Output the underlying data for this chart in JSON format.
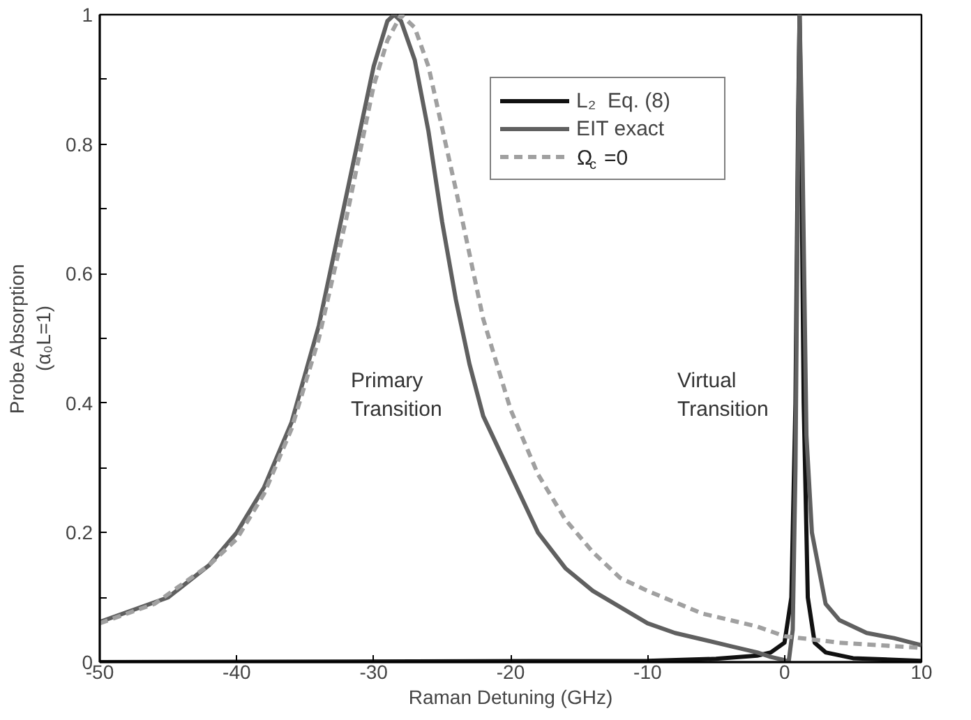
{
  "chart_data": {
    "type": "line",
    "xlabel": "Raman Detuning (GHz)",
    "ylabel": "Probe Absorption\n(α₀L=1)",
    "xlim": [
      -50,
      10
    ],
    "ylim": [
      0,
      1
    ],
    "xticks": [
      -50,
      -40,
      -30,
      -20,
      -10,
      0,
      10
    ],
    "yticks": [
      0,
      {
        "value": 0.1,
        "label": null
      },
      0.2,
      {
        "value": 0.3,
        "label": null
      },
      0.4,
      {
        "value": 0.5,
        "label": null
      },
      0.6,
      {
        "value": 0.7,
        "label": null
      },
      0.8,
      {
        "value": 0.9,
        "label": null
      },
      1
    ],
    "grid": false,
    "legend": "top right",
    "series": [
      {
        "name": "L₂  Eq. (8)",
        "color": "#111111",
        "line_style": "solid",
        "x": [
          -50,
          -10,
          -5,
          -2,
          -1,
          0,
          0.5,
          0.8,
          1.0,
          1.1,
          1.2,
          1.4,
          1.7,
          2.2,
          3,
          5,
          10
        ],
        "values": [
          0,
          0.002,
          0.005,
          0.01,
          0.015,
          0.03,
          0.1,
          0.4,
          0.85,
          1.0,
          0.85,
          0.4,
          0.1,
          0.03,
          0.015,
          0.006,
          0.002
        ]
      },
      {
        "name": "EIT exact",
        "color": "#606060",
        "line_style": "solid",
        "x": [
          -50,
          -45,
          -42,
          -40,
          -38,
          -36,
          -34,
          -32,
          -30,
          -29,
          -28.5,
          -28,
          -27,
          -26,
          -25,
          -24,
          -23,
          -22,
          -20,
          -18,
          -16,
          -14,
          -12,
          -10,
          -8,
          -6,
          -4,
          -2,
          -1,
          0,
          0.3,
          0.6,
          0.8,
          1.0,
          1.1,
          1.3,
          1.6,
          2,
          3,
          4,
          6,
          8,
          10
        ],
        "values": [
          0.062,
          0.1,
          0.15,
          0.2,
          0.27,
          0.37,
          0.52,
          0.72,
          0.92,
          0.99,
          1.0,
          0.99,
          0.93,
          0.82,
          0.68,
          0.56,
          0.46,
          0.38,
          0.29,
          0.2,
          0.145,
          0.11,
          0.085,
          0.06,
          0.045,
          0.035,
          0.025,
          0.015,
          0.008,
          0.003,
          0,
          0.05,
          0.3,
          0.8,
          1.0,
          0.8,
          0.35,
          0.2,
          0.09,
          0.065,
          0.045,
          0.037,
          0.026
        ]
      },
      {
        "name": "Ω$_{c}$ =0",
        "color": "#a0a0a0",
        "line_style": "dashed",
        "x": [
          -50,
          -46,
          -42,
          -40,
          -38,
          -36,
          -34,
          -32,
          -30,
          -29,
          -28,
          -27,
          -26,
          -24,
          -22,
          -20,
          -18,
          -16,
          -14,
          -12,
          -10,
          -6,
          -2,
          0,
          4,
          10
        ],
        "values": [
          0.06,
          0.09,
          0.15,
          0.19,
          0.26,
          0.36,
          0.5,
          0.685,
          0.89,
          0.96,
          1.0,
          0.98,
          0.92,
          0.73,
          0.53,
          0.39,
          0.29,
          0.22,
          0.17,
          0.13,
          0.11,
          0.075,
          0.055,
          0.04,
          0.03,
          0.022
        ]
      }
    ],
    "annotations": [
      "Primary\nTransition",
      "Virtual\nTransition"
    ]
  }
}
